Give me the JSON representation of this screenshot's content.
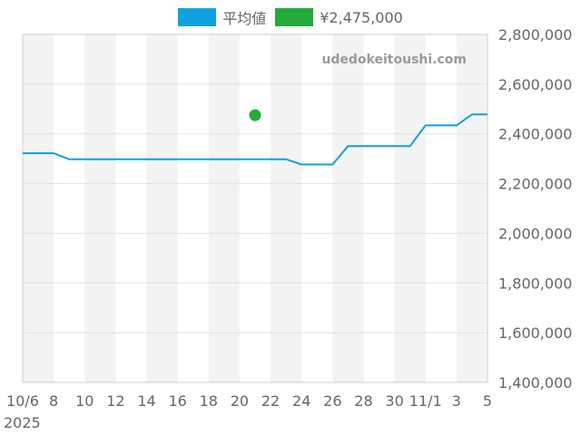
{
  "chart_data": {
    "type": "line",
    "legend_position": "top",
    "watermark": "udedokeitoushi.com",
    "year_label": "2025",
    "x_tick_labels": [
      "10/6",
      "8",
      "10",
      "12",
      "14",
      "16",
      "18",
      "20",
      "22",
      "24",
      "26",
      "28",
      "30",
      "11/1",
      "3",
      "5"
    ],
    "x_range_days": [
      "10/6",
      "11/5"
    ],
    "y_tick_labels": [
      "1,400,000",
      "1,600,000",
      "1,800,000",
      "2,000,000",
      "2,200,000",
      "2,400,000",
      "2,600,000",
      "2,800,000"
    ],
    "ylim": [
      1400000,
      2800000
    ],
    "y_axis_side": "right",
    "grid": true,
    "alternating_day_bands": true,
    "series": [
      {
        "name": "平均値",
        "color": "#0fa0e0",
        "kind": "line",
        "x": [
          "10/6",
          "10/7",
          "10/8",
          "10/9",
          "10/10",
          "10/11",
          "10/12",
          "10/13",
          "10/14",
          "10/15",
          "10/16",
          "10/17",
          "10/18",
          "10/19",
          "10/20",
          "10/21",
          "10/22",
          "10/23",
          "10/24",
          "10/25",
          "10/26",
          "10/27",
          "10/28",
          "10/29",
          "10/30",
          "10/31",
          "11/1",
          "11/2",
          "11/3",
          "11/4",
          "11/5"
        ],
        "values": [
          2322000,
          2322000,
          2322000,
          2298000,
          2298000,
          2298000,
          2298000,
          2298000,
          2298000,
          2298000,
          2298000,
          2298000,
          2298000,
          2298000,
          2298000,
          2298000,
          2298000,
          2298000,
          2277000,
          2277000,
          2277000,
          2351000,
          2351000,
          2351000,
          2351000,
          2351000,
          2434000,
          2434000,
          2434000,
          2478000,
          2478000
        ]
      },
      {
        "name": "¥2,475,000",
        "color": "#22aa3a",
        "kind": "scatter",
        "x": [
          "10/21"
        ],
        "values": [
          2475000
        ]
      }
    ]
  }
}
